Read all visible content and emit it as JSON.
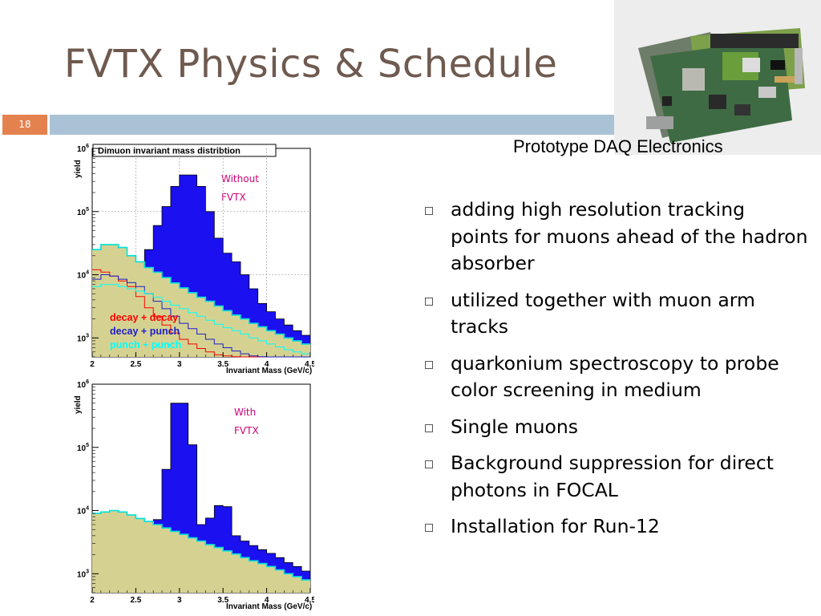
{
  "slide": {
    "title": "FVTX Physics & Schedule",
    "number": "18",
    "photo_caption": "Prototype DAQ Electronics"
  },
  "bullets": [
    "adding high resolution tracking points for muons ahead of the hadron absorber",
    "utilized together with muon arm tracks",
    "quarkonium spectroscopy to probe color screening in medium",
    "Single muons",
    "Background suppression for direct photons in FOCAL",
    "Installation for Run-12"
  ],
  "colors": {
    "title": "#6f5a4f",
    "accent_bar": "#a9c2d6",
    "slide_number_bg": "#e4824f",
    "histogram_fill": "#1a10f0",
    "background_fill": "#d5d291",
    "decay_decay": "#ff0000",
    "decay_punch": "#2020c8",
    "punch_punch": "#00ffff",
    "annotation": "#cc0077"
  },
  "chart_data": [
    {
      "type": "area",
      "title": "Dimuon invariant mass distribtion",
      "annotation": "Without FVTX",
      "xlabel": "Invariant Mass (GeV/c)",
      "ylabel": "yield",
      "xlim": [
        2,
        4.5
      ],
      "ylim": [
        500,
        1000000
      ],
      "log_y": true,
      "x_ticks": [
        "2",
        "2.5",
        "3",
        "3.5",
        "4",
        "4.5"
      ],
      "y_ticks": [
        "10^3",
        "10^4",
        "10^5",
        "10^6"
      ],
      "grid": true,
      "bins": [
        2.0,
        2.1,
        2.2,
        2.3,
        2.4,
        2.5,
        2.6,
        2.7,
        2.8,
        2.9,
        3.0,
        3.1,
        3.2,
        3.3,
        3.4,
        3.5,
        3.6,
        3.7,
        3.8,
        3.9,
        4.0,
        4.1,
        4.2,
        4.3,
        4.4
      ],
      "series": [
        {
          "values": [
            25000,
            30000,
            30000,
            27000,
            20000,
            16000,
            25000,
            60000,
            120000,
            250000,
            380000,
            380000,
            250000,
            100000,
            38000,
            22000,
            16000,
            10000,
            6000,
            3500,
            2600,
            2000,
            1600,
            1300,
            1100
          ]
        },
        {
          "values": [
            25000,
            30000,
            30000,
            27000,
            20000,
            16000,
            13000,
            11000,
            9000,
            7400,
            6200,
            5200,
            4400,
            3800,
            3200,
            2700,
            2300,
            2000,
            1700,
            1500,
            1300,
            1150,
            1000,
            900,
            800
          ]
        },
        {
          "name": "decay + decay",
          "values": [
            12000,
            11000,
            9500,
            8000,
            6500,
            4500,
            3000,
            2200,
            1600,
            1200,
            950,
            800,
            680,
            600,
            540,
            520,
            505,
            500,
            500,
            500,
            500,
            500,
            500,
            500,
            500
          ]
        },
        {
          "name": "decay + punch",
          "values": [
            8500,
            10000,
            9500,
            8500,
            7500,
            6500,
            5000,
            3800,
            2900,
            2200,
            1700,
            1400,
            1150,
            950,
            800,
            700,
            620,
            560,
            520,
            505,
            500,
            500,
            500,
            500,
            500
          ]
        },
        {
          "name": "punch + punch",
          "values": [
            6500,
            7000,
            7000,
            6500,
            6000,
            5500,
            5000,
            4400,
            3800,
            3300,
            2900,
            2500,
            2200,
            1900,
            1650,
            1450,
            1300,
            1150,
            1000,
            900,
            800,
            720,
            650,
            600,
            560
          ]
        }
      ]
    },
    {
      "type": "area",
      "annotation": "With FVTX",
      "xlabel": "Invariant Mass (GeV/c)",
      "ylabel": "yield",
      "xlim": [
        2,
        4.5
      ],
      "ylim": [
        500,
        1000000
      ],
      "log_y": true,
      "x_ticks": [
        "2",
        "2.5",
        "3",
        "3.5",
        "4",
        "4.5"
      ],
      "y_ticks": [
        "10^3",
        "10^4",
        "10^5",
        "10^6"
      ],
      "grid": false,
      "bins": [
        2.0,
        2.1,
        2.2,
        2.3,
        2.4,
        2.5,
        2.6,
        2.7,
        2.8,
        2.9,
        3.0,
        3.1,
        3.2,
        3.3,
        3.4,
        3.5,
        3.6,
        3.7,
        3.8,
        3.9,
        4.0,
        4.1,
        4.2,
        4.3,
        4.4
      ],
      "series": [
        {
          "values": [
            9000,
            9500,
            10000,
            9500,
            8500,
            7500,
            6700,
            7200,
            45000,
            500000,
            500000,
            110000,
            6000,
            7600,
            12000,
            11500,
            4000,
            3300,
            2800,
            2400,
            2100,
            1800,
            1500,
            1300,
            1100
          ]
        },
        {
          "values": [
            9000,
            9500,
            10000,
            9500,
            8500,
            7500,
            6700,
            6000,
            5300,
            4700,
            4200,
            3700,
            3300,
            2900,
            2600,
            2300,
            2050,
            1800,
            1600,
            1450,
            1300,
            1150,
            1000,
            900,
            800
          ]
        }
      ]
    }
  ]
}
